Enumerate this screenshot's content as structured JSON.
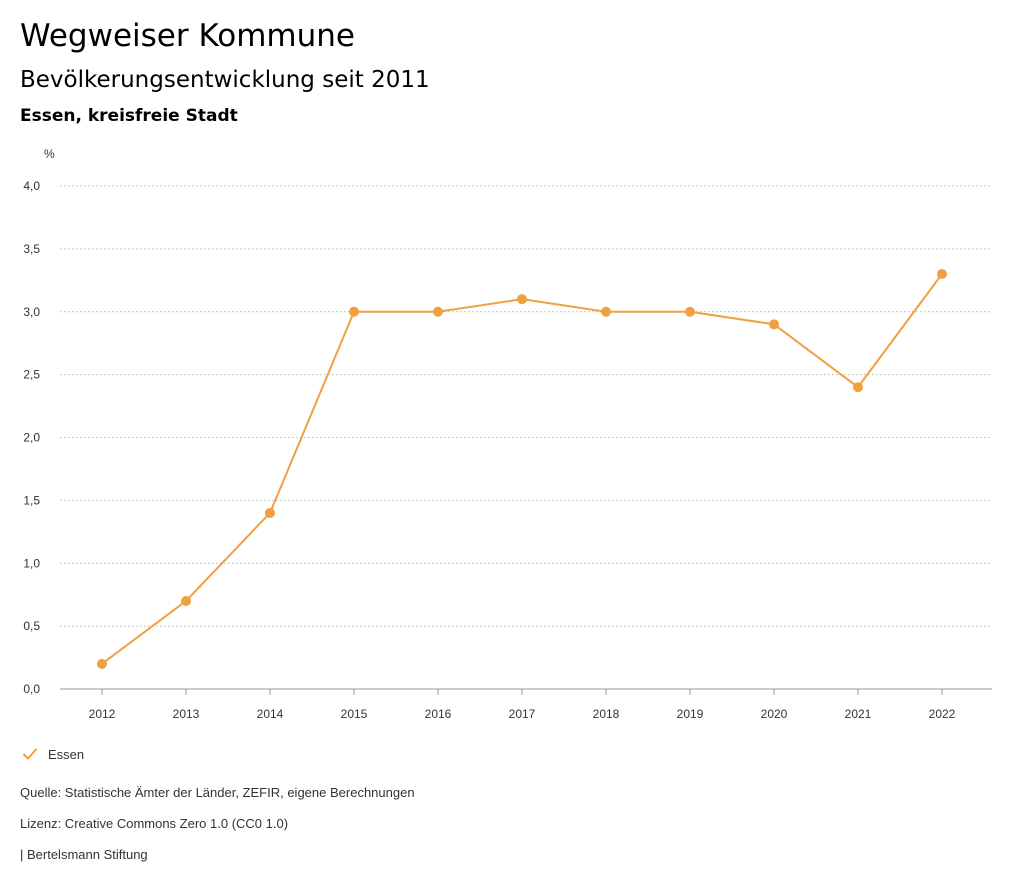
{
  "header": {
    "title": "Wegweiser Kommune",
    "subtitle": "Bevölkerungsentwicklung seit 2011",
    "region": "Essen, kreisfreie Stadt"
  },
  "chart_data": {
    "type": "line",
    "title": "Bevölkerungsentwicklung seit 2011",
    "ylabel": "%",
    "xlabel": "",
    "categories": [
      "2012",
      "2013",
      "2014",
      "2015",
      "2016",
      "2017",
      "2018",
      "2019",
      "2020",
      "2021",
      "2022"
    ],
    "series": [
      {
        "name": "Essen",
        "color": "#F0A040",
        "values": [
          0.2,
          0.7,
          1.4,
          3.0,
          3.0,
          3.1,
          3.0,
          3.0,
          2.9,
          2.4,
          3.3
        ]
      }
    ],
    "ylim": [
      0,
      4
    ],
    "yticks": [
      0,
      0.5,
      1,
      1.5,
      2,
      2.5,
      3,
      3.5,
      4
    ],
    "ytick_labels": [
      "0,0",
      "0,5",
      "1,0",
      "1,5",
      "2,0",
      "2,5",
      "3,0",
      "3,5",
      "4,0"
    ],
    "grid": "horizontal-dotted",
    "legend_position": "bottom-left"
  },
  "legend": {
    "label": "Essen",
    "icon": "check-icon"
  },
  "footer": {
    "source": "Quelle: Statistische Ämter der Länder, ZEFIR, eigene Berechnungen",
    "license": "Lizenz: Creative Commons Zero 1.0 (CC0 1.0)",
    "brand": "| Bertelsmann Stiftung"
  }
}
